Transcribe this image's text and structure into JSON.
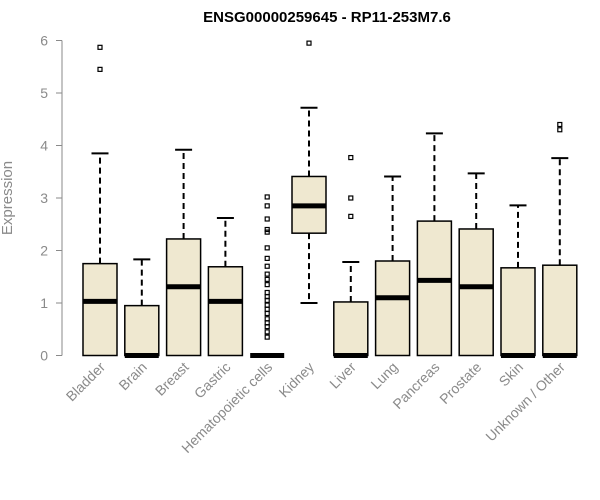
{
  "chart_data": {
    "type": "boxplot",
    "title": "ENSG00000259645 - RP11-253M7.6",
    "ylabel": "Expression",
    "xlabel": "",
    "ylim": [
      0,
      6
    ],
    "yticks": [
      0,
      1,
      2,
      3,
      4,
      5,
      6
    ],
    "box_color": "#efe8d0",
    "categories": [
      "Bladder",
      "Brain",
      "Breast",
      "Gastric",
      "Hematopoietic cells",
      "Kidney",
      "Liver",
      "Lung",
      "Pancreas",
      "Prostate",
      "Skin",
      "Unknown / Other"
    ],
    "boxes": [
      {
        "q1": 0,
        "median": 1.03,
        "q3": 1.75,
        "whisker_low": 0,
        "whisker_high": 3.85,
        "outliers": [
          5.45,
          5.87
        ]
      },
      {
        "q1": 0,
        "median": 0,
        "q3": 0.95,
        "whisker_low": 0,
        "whisker_high": 1.83,
        "outliers": []
      },
      {
        "q1": 0,
        "median": 1.31,
        "q3": 2.22,
        "whisker_low": 0,
        "whisker_high": 3.92,
        "outliers": []
      },
      {
        "q1": 0,
        "median": 1.03,
        "q3": 1.69,
        "whisker_low": 0,
        "whisker_high": 2.62,
        "outliers": []
      },
      {
        "q1": 0,
        "median": 0,
        "q3": 0,
        "whisker_low": 0,
        "whisker_high": 0,
        "outliers": [
          0.35,
          0.45,
          0.55,
          0.62,
          0.7,
          0.8,
          0.88,
          0.96,
          1.05,
          1.12,
          1.2,
          1.35,
          1.45,
          1.55,
          1.7,
          1.85,
          2.05,
          2.35,
          2.4,
          2.6,
          2.85,
          3.02
        ]
      },
      {
        "q1": 2.33,
        "median": 2.85,
        "q3": 3.41,
        "whisker_low": 1.0,
        "whisker_high": 4.72,
        "outliers": [
          5.95
        ]
      },
      {
        "q1": 0,
        "median": 0,
        "q3": 1.02,
        "whisker_low": 0,
        "whisker_high": 1.78,
        "outliers": [
          2.65,
          3.0,
          3.77
        ]
      },
      {
        "q1": 0,
        "median": 1.1,
        "q3": 1.8,
        "whisker_low": 0,
        "whisker_high": 3.41,
        "outliers": []
      },
      {
        "q1": 0,
        "median": 1.43,
        "q3": 2.56,
        "whisker_low": 0,
        "whisker_high": 4.23,
        "outliers": []
      },
      {
        "q1": 0,
        "median": 1.31,
        "q3": 2.41,
        "whisker_low": 0,
        "whisker_high": 3.47,
        "outliers": []
      },
      {
        "q1": 0,
        "median": 0,
        "q3": 1.67,
        "whisker_low": 0,
        "whisker_high": 2.86,
        "outliers": []
      },
      {
        "q1": 0,
        "median": 0,
        "q3": 1.72,
        "whisker_low": 0,
        "whisker_high": 3.76,
        "outliers": [
          4.3,
          4.4
        ]
      }
    ]
  }
}
